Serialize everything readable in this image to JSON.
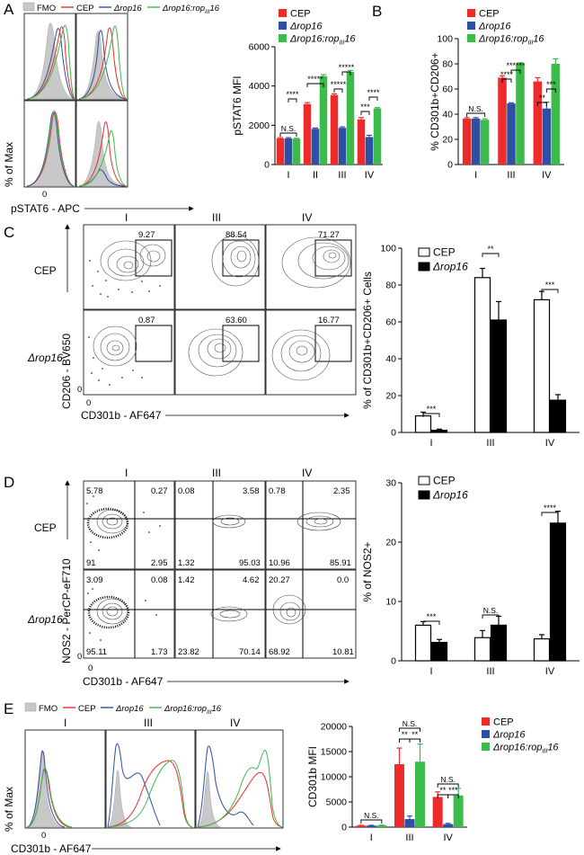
{
  "colors": {
    "cep": "#ee2b2b",
    "rop16": "#2e4fa6",
    "rop16_rop3_16": "#3cba4a",
    "fmo": "#c8c8c8",
    "black": "#000000",
    "white": "#ffffff"
  },
  "panels": {
    "A": {
      "letter": "A",
      "legend": {
        "fmo": "FMO",
        "cep": "CEP",
        "rop16": "Δrop16",
        "comp_a": "Δrop16:rop",
        "comp_sub": "III",
        "comp_b": "16"
      },
      "y_title": "% of Max",
      "x_title": "pSTAT6 - APC",
      "zero": "0"
    },
    "C": {
      "letter": "C",
      "columns": [
        "I",
        "III",
        "IV"
      ],
      "rows": [
        "CEP",
        "Δrop16"
      ],
      "gate_values": [
        [
          "9.27",
          "88.54",
          "71.27"
        ],
        [
          "0.87",
          "63.60",
          "16.77"
        ]
      ],
      "y_title": "CD206 - BV650",
      "x_title": "CD301b - AF647",
      "zero": "0"
    },
    "D": {
      "letter": "D",
      "columns": [
        "I",
        "III",
        "IV"
      ],
      "rows": [
        "CEP",
        "Δrop16"
      ],
      "quadrants": [
        [
          [
            "5.78",
            "0.27",
            "91",
            "2.95"
          ],
          [
            "0.08",
            "3.58",
            "1.32",
            "95.03"
          ],
          [
            "0.78",
            "2.35",
            "10.96",
            "85.91"
          ]
        ],
        [
          [
            "3.09",
            "0.08",
            "95.11",
            "1.73"
          ],
          [
            "1.42",
            "4.62",
            "23.82",
            "70.14"
          ],
          [
            "20.27",
            "0.0",
            "68.92",
            "10.81"
          ]
        ]
      ],
      "y_title": "NOS2 - PerCP-eF710",
      "x_title": "CD301b - AF647",
      "zero": "0"
    },
    "E": {
      "letter": "E",
      "columns": [
        "I",
        "III",
        "IV"
      ],
      "legend": {
        "fmo": "FMO",
        "cep": "CEP",
        "rop16": "Δrop16",
        "comp_a": "Δrop16:rop",
        "comp_sub": "III",
        "comp_b": "16"
      },
      "y_title": "% of Max",
      "x_title": "CD301b - AF647",
      "zero": "0"
    }
  },
  "chart_data": [
    {
      "id": "A-bar",
      "type": "bar",
      "ylabel": "pSTAT6 MFI",
      "categories": [
        "I",
        "II",
        "III",
        "IV"
      ],
      "ylim": [
        0,
        6000
      ],
      "yticks": [
        "0",
        "2000",
        "4000",
        "6000"
      ],
      "series": [
        {
          "name": "CEP",
          "values": [
            1330,
            3080,
            3540,
            2300
          ],
          "err": [
            40,
            70,
            60,
            90
          ]
        },
        {
          "name": "Δrop16",
          "values": [
            1330,
            1820,
            1870,
            1400
          ],
          "err": [
            40,
            40,
            50,
            90
          ]
        },
        {
          "name": "Δrop16:ropIII16",
          "values": [
            1310,
            4500,
            4720,
            2860
          ],
          "err": [
            30,
            80,
            70,
            40
          ]
        }
      ],
      "annotations": [
        "N.S.",
        "****",
        "*****",
        "*****",
        "*****",
        "***",
        "****"
      ]
    },
    {
      "id": "B-bar",
      "type": "bar",
      "ylabel": "% CD301b+CD206+",
      "categories": [
        "I",
        "III",
        "IV"
      ],
      "ylim": [
        0,
        100
      ],
      "yticks": [
        "0",
        "20",
        "40",
        "60",
        "80",
        "100"
      ],
      "series": [
        {
          "name": "CEP",
          "values": [
            36.5,
            69,
            66
          ],
          "err": [
            0.8,
            1.5,
            3
          ]
        },
        {
          "name": "Δrop16",
          "values": [
            36.5,
            48.5,
            44.5
          ],
          "err": [
            0.8,
            0.5,
            5
          ]
        },
        {
          "name": "Δrop16:ropIII16",
          "values": [
            35.5,
            80,
            80
          ],
          "err": [
            0.8,
            0.8,
            4
          ]
        }
      ],
      "annotations": [
        "N.S.",
        "****",
        "******",
        "**",
        "***"
      ]
    },
    {
      "id": "C-bar",
      "type": "bar",
      "ylabel": "% of CD301b+CD206+ Cells",
      "categories": [
        "I",
        "III",
        "IV"
      ],
      "ylim": [
        0,
        100
      ],
      "yticks": [
        "0",
        "20",
        "40",
        "60",
        "80",
        "100"
      ],
      "series": [
        {
          "name": "CEP",
          "values": [
            9,
            84,
            72
          ],
          "err": [
            2,
            5,
            4.5
          ]
        },
        {
          "name": "Δrop16",
          "values": [
            1.2,
            61,
            17.5
          ],
          "err": [
            0.6,
            10,
            3
          ]
        }
      ],
      "annotations": [
        "***",
        "**",
        "***"
      ]
    },
    {
      "id": "D-bar",
      "type": "bar",
      "ylabel": "% of NOS2+",
      "categories": [
        "I",
        "III",
        "IV"
      ],
      "ylim": [
        0,
        30
      ],
      "yticks": [
        "0",
        "10",
        "20",
        "30"
      ],
      "series": [
        {
          "name": "CEP",
          "values": [
            6,
            3.9,
            3.7
          ],
          "err": [
            0.6,
            1.2,
            0.7
          ]
        },
        {
          "name": "Δrop16",
          "values": [
            3.1,
            6,
            23.2
          ],
          "err": [
            0.5,
            1.5,
            2
          ]
        }
      ],
      "annotations": [
        "***",
        "N.S.",
        "****"
      ]
    },
    {
      "id": "E-bar",
      "type": "bar",
      "ylabel": "CD301b MFI",
      "categories": [
        "I",
        "III",
        "IV"
      ],
      "ylim": [
        0,
        20000
      ],
      "yticks": [
        "0",
        "5000",
        "10000",
        "15000",
        "20000"
      ],
      "series": [
        {
          "name": "CEP",
          "values": [
            300,
            12500,
            6000
          ],
          "err": [
            60,
            3200,
            1000
          ]
        },
        {
          "name": "Δrop16",
          "values": [
            300,
            1600,
            600
          ],
          "err": [
            60,
            600,
            150
          ]
        },
        {
          "name": "Δrop16:ropIII16",
          "values": [
            350,
            13000,
            6300
          ],
          "err": [
            60,
            3500,
            1400
          ]
        }
      ],
      "annotations": [
        "N.S.",
        "N.S.",
        "**",
        "**",
        "N.S.",
        "**",
        "***"
      ]
    }
  ]
}
